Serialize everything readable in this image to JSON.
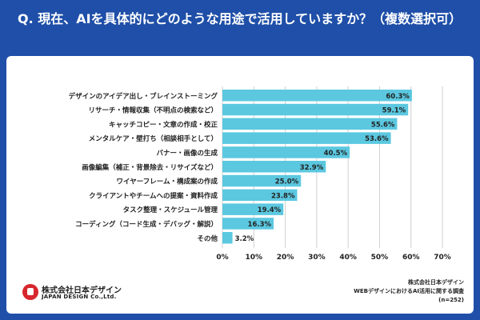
{
  "title": "Q. 現在、AIを具体的にどのような用途で活用していますか？（複数選択可）",
  "chart_data": {
    "type": "bar",
    "orientation": "horizontal",
    "categories": [
      "デザインのアイデア出し・ブレインストーミング",
      "リサーチ・情報収集（不明点の検索など）",
      "キャッチコピー・文章の作成・校正",
      "メンタルケア・壁打ち（相談相手として）",
      "バナー・画像の生成",
      "画像編集（補正・背景除去・リサイズなど）",
      "ワイヤーフレーム・構成案の作成",
      "クライアントやチームへの提案・資料作成",
      "タスク整理・スケジュール管理",
      "コーディング（コード生成・デバッグ・解説）",
      "その他"
    ],
    "values": [
      60.3,
      59.1,
      55.6,
      53.6,
      40.5,
      32.9,
      25.0,
      23.8,
      19.4,
      16.3,
      3.2
    ],
    "value_labels": [
      "60.3%",
      "59.1%",
      "55.6%",
      "53.6%",
      "40.5%",
      "32.9%",
      "25.0%",
      "23.8%",
      "19.4%",
      "16.3%",
      "3.2%"
    ],
    "xlim": [
      0,
      70
    ],
    "xticks": [
      "0%",
      "10%",
      "20%",
      "30%",
      "40%",
      "50%",
      "60%",
      "70%"
    ],
    "grid": true,
    "bar_color": "#5bc8e0"
  },
  "footer": {
    "logo_name": "株式会社日本デザイン",
    "logo_sub": "JAPAN DESIGN Co.,Ltd.",
    "source_company": "株式会社日本デザイン",
    "source_survey": "WEBデザインにおけるAI活用に関する調査",
    "source_n": "(n=252)"
  }
}
